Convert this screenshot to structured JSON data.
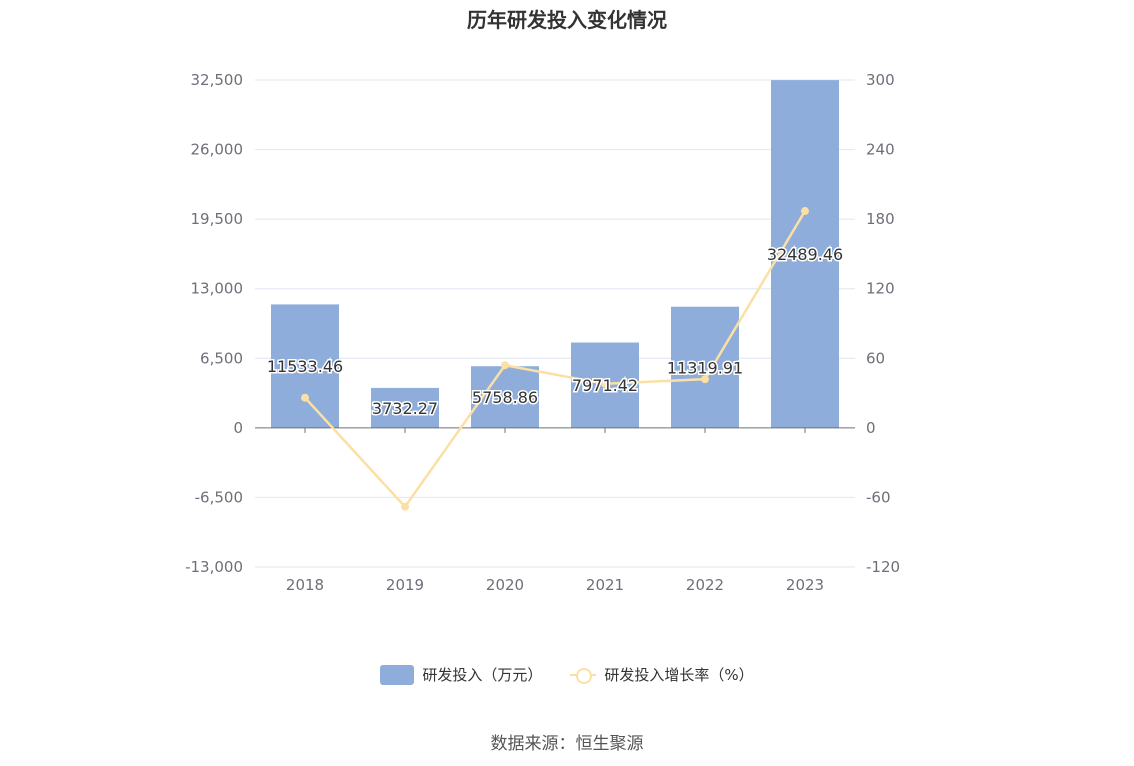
{
  "chart_data": {
    "type": "bar",
    "title": "历年研发投入变化情况",
    "categories": [
      "2018",
      "2019",
      "2020",
      "2021",
      "2022",
      "2023"
    ],
    "series": [
      {
        "name": "研发投入（万元）",
        "type": "bar",
        "axis": "left",
        "values": [
          11533.46,
          3732.27,
          5758.86,
          7971.42,
          11319.91,
          32489.46
        ],
        "labels": [
          "11533.46",
          "3732.27",
          "5758.86",
          "7971.42",
          "11319.91",
          "32489.46"
        ],
        "color": "#8eadda"
      },
      {
        "name": "研发投入增长率（%）",
        "type": "line",
        "axis": "right",
        "values": [
          26,
          -68,
          54,
          38,
          42,
          187
        ],
        "color": "#fbe0a6"
      }
    ],
    "y_left": {
      "ylim": [
        -13000,
        32500
      ],
      "ticks": [
        32500,
        26000,
        19500,
        13000,
        6500,
        0,
        -6500,
        -13000
      ],
      "tick_labels": [
        "32,500",
        "26,000",
        "19,500",
        "13,000",
        "6,500",
        "0",
        "-6,500",
        "-13,000"
      ]
    },
    "y_right": {
      "ylim": [
        -120,
        300
      ],
      "ticks": [
        300,
        240,
        180,
        120,
        60,
        0,
        -60,
        -120
      ],
      "tick_labels": [
        "300",
        "240",
        "180",
        "120",
        "60",
        "0",
        "-60",
        "-120"
      ]
    },
    "grid": true,
    "legend_position": "bottom"
  },
  "source": "数据来源：恒生聚源"
}
